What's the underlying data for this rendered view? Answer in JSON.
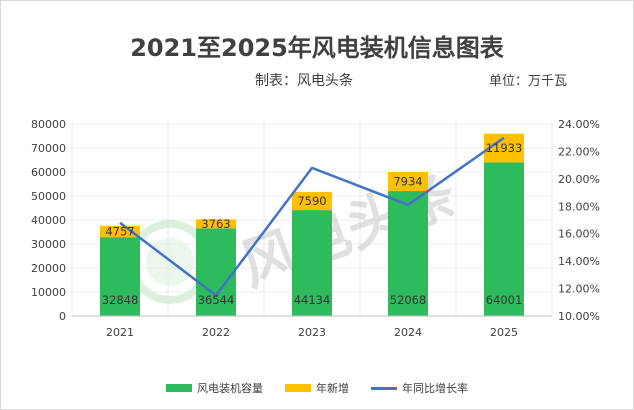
{
  "title": "2021至2025年风电装机信息图表",
  "maker": "制表：风电头条",
  "unit": "单位：万千瓦",
  "watermark": "风电头条",
  "colors": {
    "capacity": "#2dbb5e",
    "new_added": "#ffc000",
    "growth_line": "#4472c4",
    "grid": "#d9d9d9"
  },
  "chart_data": {
    "type": "bar",
    "categories": [
      "2021",
      "2022",
      "2023",
      "2024",
      "2025"
    ],
    "series": [
      {
        "name": "风电装机容量",
        "kind": "bar",
        "stack": "total",
        "values": [
          32848,
          36544,
          44134,
          52068,
          64001
        ]
      },
      {
        "name": "年新增",
        "kind": "bar",
        "stack": "total",
        "values": [
          4757,
          3763,
          7590,
          7934,
          11933
        ]
      },
      {
        "name": "年同比增长率",
        "kind": "line",
        "axis": "right",
        "values": [
          16.8,
          11.5,
          20.8,
          18.1,
          23.0
        ]
      }
    ],
    "y_left": {
      "lim": [
        0,
        80000
      ],
      "ticks": [
        "0",
        "10000",
        "20000",
        "30000",
        "40000",
        "50000",
        "60000",
        "70000",
        "80000"
      ]
    },
    "y_right": {
      "lim": [
        10,
        24
      ],
      "ticks": [
        "10.00%",
        "12.00%",
        "14.00%",
        "16.00%",
        "18.00%",
        "20.00%",
        "22.00%",
        "24.00%"
      ]
    },
    "grid": true,
    "legend": "bottom"
  }
}
